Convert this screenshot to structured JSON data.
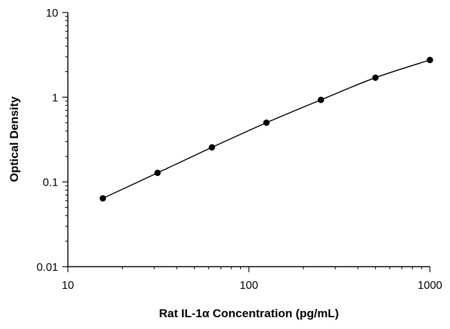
{
  "chart_data": {
    "type": "scatter",
    "xlabel": "Rat IL-1α Concentration (pg/mL)",
    "ylabel": "Optical Density",
    "xscale": "log",
    "yscale": "log",
    "xlim": [
      10,
      1000
    ],
    "ylim": [
      0.01,
      10
    ],
    "x_ticks": [
      "10",
      "100",
      "1000"
    ],
    "y_ticks": [
      "10",
      "1",
      "0.1",
      "0.01"
    ],
    "grid": false,
    "legend": "none",
    "fit_line": "smooth curve through points",
    "series": [
      {
        "x": [
          15.6,
          31.3,
          62.5,
          125,
          250,
          500,
          1000
        ],
        "y": [
          0.064,
          0.128,
          0.256,
          0.5,
          0.93,
          1.7,
          2.75
        ]
      }
    ],
    "colors": {
      "points": "#000000",
      "line": "#000000",
      "axes": "#000000"
    }
  }
}
